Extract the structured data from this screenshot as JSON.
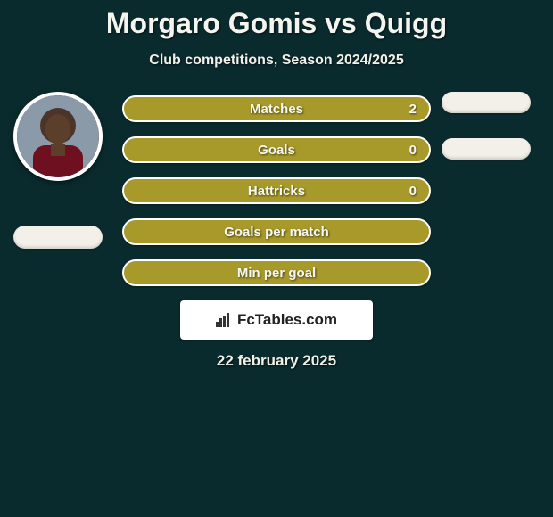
{
  "header": {
    "title": "Morgaro Gomis vs Quigg",
    "subtitle": "Club competitions, Season 2024/2025",
    "title_color": "#f5f5f0",
    "title_fontsize": 32,
    "subtitle_fontsize": 16
  },
  "players": {
    "left": {
      "name": "Morgaro Gomis",
      "avatar_border_color": "#ffffff",
      "pill_color": "#f2f0e8"
    },
    "right": {
      "name": "Quigg",
      "pill_color": "#f2f0e8"
    }
  },
  "stats": {
    "rows": [
      {
        "label": "Matches",
        "value": "2",
        "show_value": true
      },
      {
        "label": "Goals",
        "value": "0",
        "show_value": true
      },
      {
        "label": "Hattricks",
        "value": "0",
        "show_value": true
      },
      {
        "label": "Goals per match",
        "value": "",
        "show_value": false
      },
      {
        "label": "Min per goal",
        "value": "",
        "show_value": false
      }
    ],
    "pill_fill": "#a89a2a",
    "pill_border": "#ffffff",
    "label_fontsize": 15,
    "label_color": "#f8f8f2"
  },
  "branding": {
    "text": "FcTables.com",
    "bg_color": "#ffffff",
    "text_color": "#222222",
    "fontsize": 17
  },
  "footer": {
    "date": "22 february 2025",
    "fontsize": 17
  },
  "theme": {
    "background": "#0a2b2e"
  }
}
